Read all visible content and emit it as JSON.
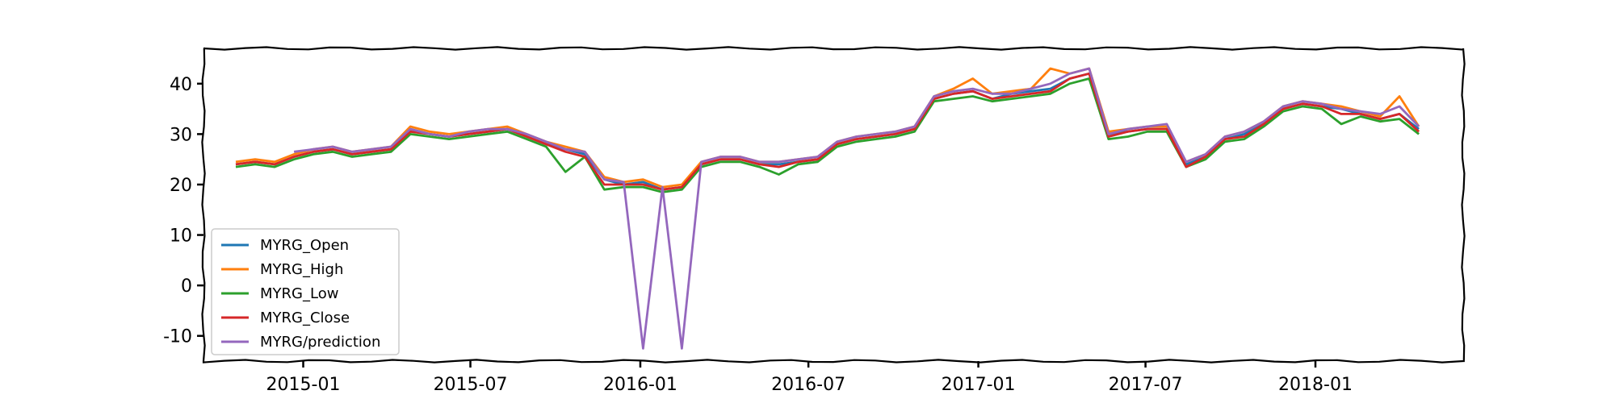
{
  "chart_data": {
    "type": "line",
    "title": "",
    "xlabel": "",
    "ylabel": "",
    "xlim": [
      "2014-09-15",
      "2018-06-10"
    ],
    "ylim": [
      -15,
      47
    ],
    "x_ticks": [
      "2015-01",
      "2015-07",
      "2016-01",
      "2016-07",
      "2017-01",
      "2017-07",
      "2018-01"
    ],
    "y_ticks": [
      40,
      30,
      20,
      10,
      0,
      -10
    ],
    "grid": false,
    "legend_position": "lower-left",
    "x": [
      "2014-10-20",
      "2014-11-10",
      "2014-12-01",
      "2014-12-22",
      "2015-01-12",
      "2015-02-02",
      "2015-02-23",
      "2015-03-16",
      "2015-04-06",
      "2015-04-27",
      "2015-05-18",
      "2015-06-08",
      "2015-06-29",
      "2015-07-20",
      "2015-08-10",
      "2015-08-31",
      "2015-09-21",
      "2015-10-12",
      "2015-11-02",
      "2015-11-23",
      "2015-12-14",
      "2016-01-04",
      "2016-01-25",
      "2016-02-15",
      "2016-03-07",
      "2016-03-28",
      "2016-04-18",
      "2016-05-09",
      "2016-05-30",
      "2016-06-20",
      "2016-07-11",
      "2016-08-01",
      "2016-08-22",
      "2016-09-12",
      "2016-10-03",
      "2016-10-24",
      "2016-11-14",
      "2016-12-05",
      "2016-12-26",
      "2017-01-16",
      "2017-02-06",
      "2017-02-27",
      "2017-03-20",
      "2017-04-10",
      "2017-05-01",
      "2017-05-22",
      "2017-06-12",
      "2017-07-03",
      "2017-07-24",
      "2017-08-14",
      "2017-09-04",
      "2017-09-25",
      "2017-10-16",
      "2017-11-06",
      "2017-11-27",
      "2017-12-18",
      "2018-01-08",
      "2018-01-29",
      "2018-02-19",
      "2018-03-12",
      "2018-04-02",
      "2018-04-23"
    ],
    "series": [
      {
        "name": "MYRG_Open",
        "color": "#1f77b4",
        "values": [
          24,
          24.5,
          24,
          25.5,
          26.5,
          27,
          26,
          26.5,
          27,
          31,
          30,
          29.5,
          30,
          30.5,
          31,
          29.5,
          28,
          27,
          26,
          21,
          20,
          20.5,
          19,
          19.5,
          24,
          25,
          25,
          24,
          24,
          24.5,
          25,
          28,
          29,
          29.5,
          30,
          31,
          37,
          38,
          38.5,
          37,
          38,
          38.5,
          39,
          41,
          42,
          30,
          30.5,
          31,
          31,
          24,
          25.5,
          29,
          30,
          32,
          35,
          36,
          35.5,
          35,
          34,
          33,
          34,
          31
        ]
      },
      {
        "name": "MYRG_High",
        "color": "#ff7f0e",
        "values": [
          24.5,
          25,
          24.5,
          26,
          27,
          27.5,
          26.5,
          27,
          27.5,
          31.5,
          30.5,
          30,
          30.5,
          31,
          31.5,
          30,
          28.5,
          27.5,
          26.5,
          21.5,
          20.5,
          21,
          19.5,
          20,
          24.5,
          25.5,
          25.5,
          24.5,
          24.5,
          25,
          25.5,
          28.5,
          29.5,
          30,
          30.5,
          31.5,
          37.5,
          39,
          41,
          38,
          38.5,
          39,
          43,
          42,
          43,
          30.5,
          31,
          31.5,
          31.5,
          24.5,
          26,
          29.5,
          30.5,
          32.5,
          35.5,
          36.5,
          36,
          35.5,
          34.5,
          33.5,
          37.5,
          31.5
        ]
      },
      {
        "name": "MYRG_Low",
        "color": "#2ca02c",
        "values": [
          23.5,
          24,
          23.5,
          25,
          26,
          26.5,
          25.5,
          26,
          26.5,
          30,
          29.5,
          29,
          29.5,
          30,
          30.5,
          29,
          27.5,
          22.5,
          25.5,
          19,
          19.5,
          19.5,
          18.5,
          19,
          23.5,
          24.5,
          24.5,
          23.5,
          22,
          24,
          24.5,
          27.5,
          28.5,
          29,
          29.5,
          30.5,
          36.5,
          37,
          37.5,
          36.5,
          37,
          37.5,
          38,
          40,
          41,
          29,
          29.5,
          30.5,
          30.5,
          23.5,
          25,
          28.5,
          29,
          31.5,
          34.5,
          35.5,
          35,
          32,
          33.5,
          32.5,
          33,
          30
        ]
      },
      {
        "name": "MYRG_Close",
        "color": "#d62728",
        "values": [
          24,
          24.5,
          24,
          25.5,
          26.5,
          27,
          26,
          26.5,
          27,
          30.5,
          30,
          29.5,
          30,
          30.5,
          31,
          29.5,
          28,
          26.5,
          25.5,
          20,
          20,
          20,
          19,
          19.5,
          24,
          25,
          25,
          24,
          23.5,
          24.5,
          25,
          28,
          29,
          29.5,
          30,
          31,
          37,
          38,
          38.5,
          37,
          37.5,
          38,
          38.5,
          41,
          42,
          29.5,
          30.5,
          31,
          31,
          23.5,
          25.5,
          29,
          29.5,
          32,
          35,
          36,
          35.5,
          34,
          34,
          33,
          34,
          30.5
        ]
      },
      {
        "name": "MYRG/prediction",
        "color": "#9467bd",
        "values": [
          null,
          null,
          null,
          26.5,
          27,
          27.5,
          26.5,
          27,
          27.5,
          31,
          30,
          29.5,
          30.5,
          31,
          31,
          30,
          28.5,
          27,
          26.5,
          21,
          20.5,
          -12.5,
          19.5,
          -12.5,
          24.5,
          25.5,
          25.5,
          24.5,
          24.5,
          25,
          25.5,
          28.5,
          29.5,
          30,
          30.5,
          31.5,
          37.5,
          38.5,
          39,
          38,
          38,
          39,
          40,
          42,
          43,
          30,
          31,
          31.5,
          32,
          24.5,
          26,
          29.5,
          30.5,
          32.5,
          35.5,
          36.5,
          36,
          35,
          34.5,
          34,
          35.5,
          31.5
        ]
      }
    ]
  }
}
